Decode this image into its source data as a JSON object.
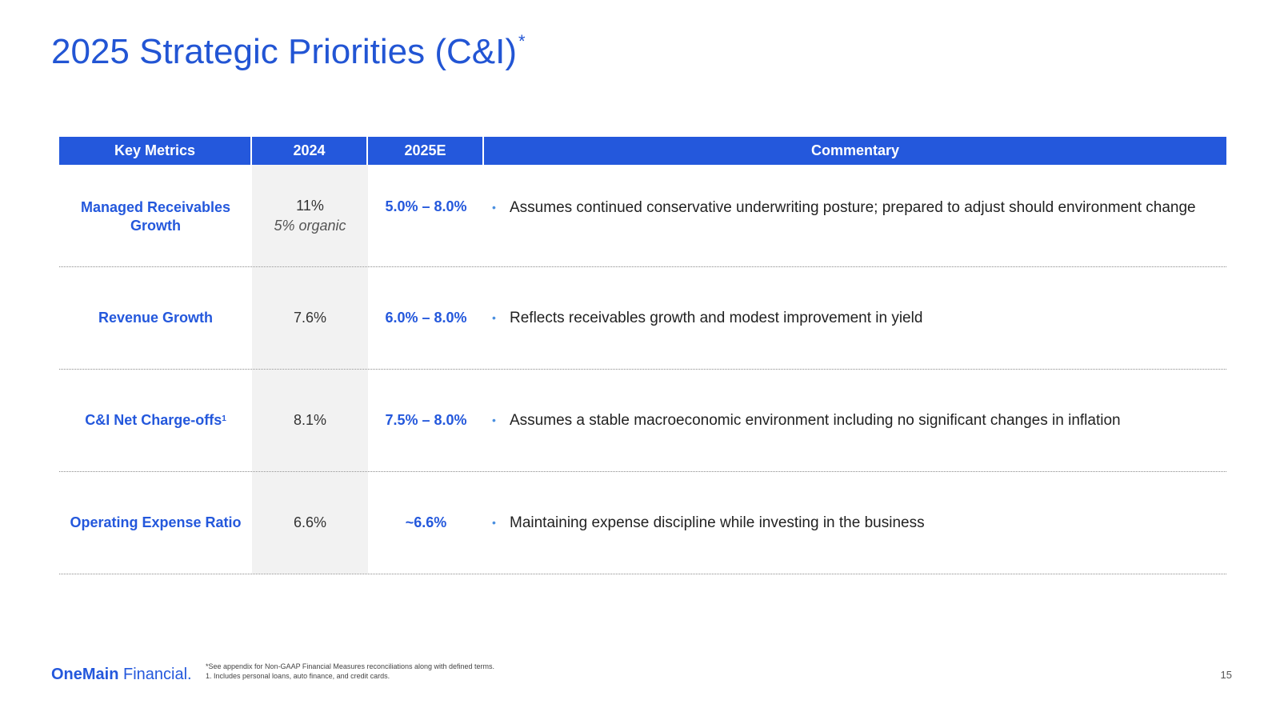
{
  "title": {
    "text": "2025 Strategic Priorities (C&I)",
    "superscript": "*"
  },
  "table": {
    "headers": [
      "Key Metrics",
      "2024",
      "2025E",
      "Commentary"
    ],
    "rows": [
      {
        "metric": "Managed Receivables Growth",
        "metric_sup": "",
        "v2024": "11%",
        "v2024_sub": "5% organic",
        "v2025": "5.0% – 8.0%",
        "commentary": "Assumes continued conservative underwriting posture; prepared to adjust should environment change"
      },
      {
        "metric": "Revenue Growth",
        "metric_sup": "",
        "v2024": "7.6%",
        "v2024_sub": "",
        "v2025": "6.0% – 8.0%",
        "commentary": "Reflects receivables growth and modest improvement in yield"
      },
      {
        "metric": "C&I Net Charge-offs",
        "metric_sup": "1",
        "v2024": "8.1%",
        "v2024_sub": "",
        "v2025": "7.5% – 8.0%",
        "commentary": "Assumes a stable macroeconomic environment including no significant changes in inflation"
      },
      {
        "metric": "Operating Expense Ratio",
        "metric_sup": "",
        "v2024": "6.6%",
        "v2024_sub": "",
        "v2025": "~6.6%",
        "commentary": "Maintaining expense discipline while investing in the business"
      }
    ]
  },
  "footer": {
    "logo_bold": "OneMain",
    "logo_regular": " Financial.",
    "footnote_1": "*See appendix for Non-GAAP Financial Measures reconciliations along with defined terms.",
    "footnote_2": "1. Includes personal loans, auto finance, and credit cards.",
    "page_number": "15"
  },
  "colors": {
    "accent": "#2458dc",
    "header_bg": "#2458dc",
    "shaded_column": "#f2f2f2",
    "bullet": "#4a8fe0"
  }
}
